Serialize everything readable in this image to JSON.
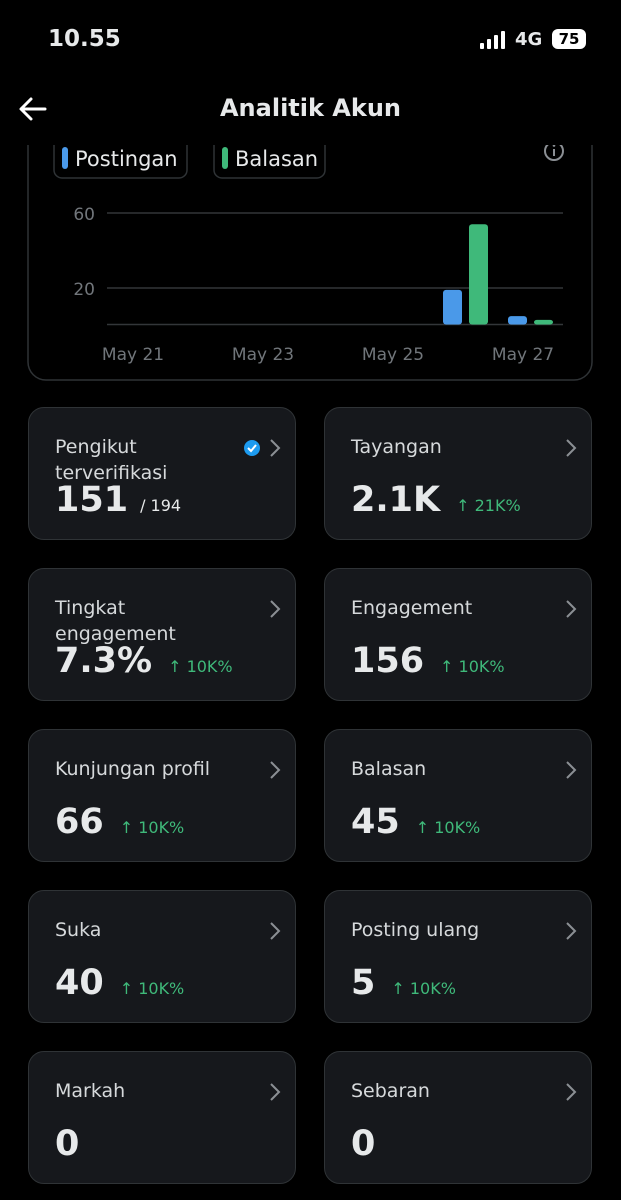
{
  "status_bar": {
    "time": "10.55",
    "network": "4G",
    "battery": "75"
  },
  "header": {
    "title": "Analitik Akun"
  },
  "chart_data": {
    "type": "bar",
    "categories": [
      "May 21",
      null,
      "May 23",
      null,
      "May 25",
      null,
      "May 27"
    ],
    "series": [
      {
        "name": "Postingan",
        "color": "#4a99e9",
        "values": [
          0,
          0,
          0,
          0,
          0,
          19,
          5
        ]
      },
      {
        "name": "Balasan",
        "color": "#3fb97a",
        "values": [
          0,
          0,
          0,
          0,
          0,
          54,
          3
        ]
      }
    ],
    "ylim": [
      0,
      60
    ],
    "yticks": [
      20,
      60
    ],
    "grid": true
  },
  "cards": [
    {
      "title": "Pengikut terverifikasi",
      "value": "151",
      "total": "/ 194",
      "verified": true
    },
    {
      "title": "Tayangan",
      "value": "2.1K",
      "change": "21K%"
    },
    {
      "title": "Tingkat engagement",
      "value": "7.3%",
      "change": "10K%"
    },
    {
      "title": "Engagement",
      "value": "156",
      "change": "10K%"
    },
    {
      "title": "Kunjungan profil",
      "value": "66",
      "change": "10K%"
    },
    {
      "title": "Balasan",
      "value": "45",
      "change": "10K%"
    },
    {
      "title": "Suka",
      "value": "40",
      "change": "10K%"
    },
    {
      "title": "Posting ulang",
      "value": "5",
      "change": "10K%"
    },
    {
      "title": "Markah",
      "value": "0"
    },
    {
      "title": "Sebaran",
      "value": "0"
    }
  ]
}
